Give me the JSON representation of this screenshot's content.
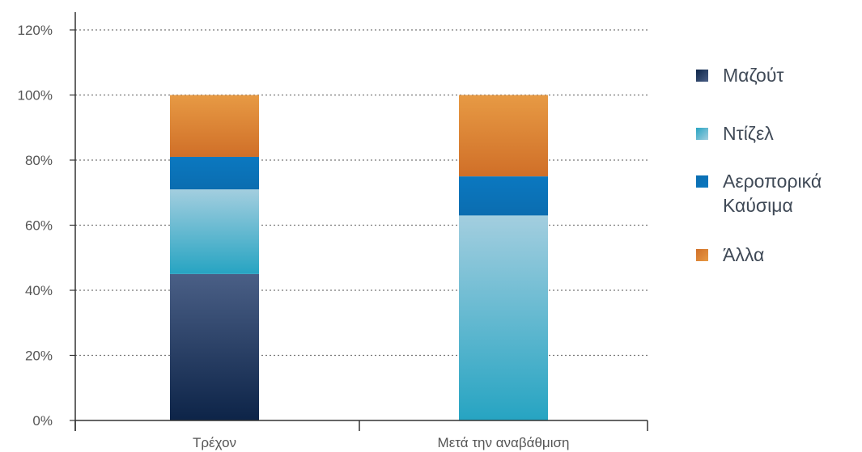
{
  "chart_data": {
    "type": "bar",
    "stacked": true,
    "categories": [
      "Τρέχον",
      "Μετά την αναβάθμιση"
    ],
    "series": [
      {
        "name": "Μαζούτ",
        "values": [
          45,
          0
        ],
        "color_top": "#4a5f86",
        "color_bottom": "#0d2448"
      },
      {
        "name": "Ντίζελ",
        "values": [
          26,
          63
        ],
        "color_top": "#a3cedf",
        "color_bottom": "#26a4c2"
      },
      {
        "name": "Αεροπορικά\nΚαύσιμα",
        "values": [
          10,
          12
        ],
        "color_top": "#0b78c0",
        "color_bottom": "#0b6db0"
      },
      {
        "name": "Άλλα",
        "values": [
          19,
          25
        ],
        "color_top": "#e79a44",
        "color_bottom": "#d06f28"
      }
    ],
    "yticks": [
      "0%",
      "20%",
      "40%",
      "60%",
      "80%",
      "100%",
      "120%"
    ],
    "ylim": [
      0,
      120
    ],
    "ytick_step": 20,
    "grid": true,
    "grid_style": "dotted",
    "legend_position": "right"
  }
}
